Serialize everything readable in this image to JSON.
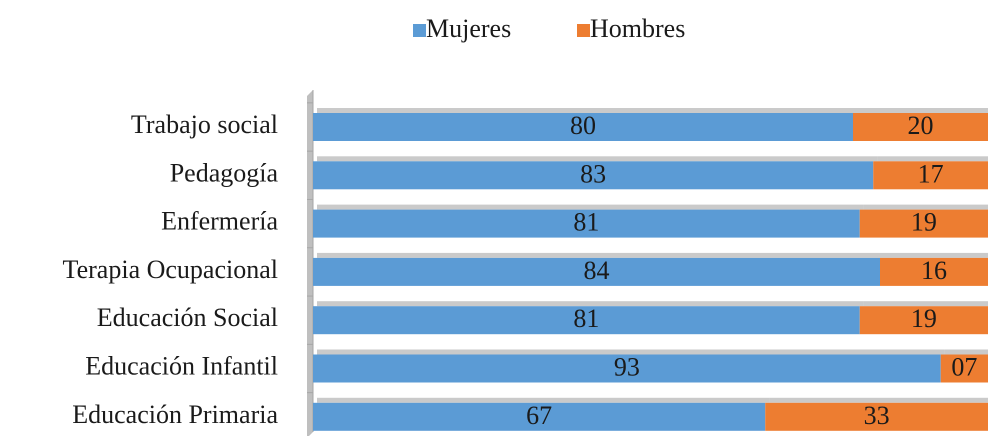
{
  "chart_data": {
    "type": "bar",
    "orientation": "horizontal",
    "stacked": true,
    "legend": "top",
    "categories": [
      "Trabajo social",
      "Pedagogía",
      "Enfermería",
      "Terapia Ocupacional",
      "Educación Social",
      "Educación Infantil",
      "Educación Primaria"
    ],
    "series": [
      {
        "name": "Mujeres",
        "color": "#5b9bd5",
        "values": [
          80,
          83,
          81,
          84,
          81,
          93,
          67
        ]
      },
      {
        "name": "Hombres",
        "color": "#ed7d31",
        "values": [
          20,
          17,
          19,
          16,
          19,
          7,
          33
        ],
        "value_labels": [
          "20",
          "17",
          "19",
          "16",
          "19",
          "07",
          "33"
        ]
      }
    ]
  }
}
